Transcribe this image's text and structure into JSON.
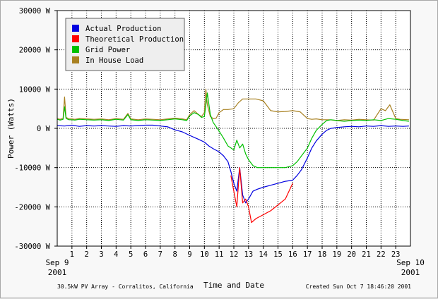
{
  "chart_data": {
    "type": "line",
    "ylabel": "Power (Watts)",
    "xlabel": "Time and Date",
    "footer_left": "30.5kW PV Array - Corralitos, California",
    "footer_right": "Created Sun Oct  7 18:46:20 2001",
    "date_start": "Sep 9",
    "year_start": "2001",
    "date_end": "Sep 10",
    "year_end": "2001",
    "ylim": [
      -30000,
      30000
    ],
    "xlim": [
      0,
      24
    ],
    "y_ticks": [
      30000,
      20000,
      10000,
      0,
      -10000,
      -20000,
      -30000
    ],
    "y_tick_labels": [
      "30000 W",
      "20000 W",
      "10000 W",
      "0 W",
      "-10000 W",
      "-20000 W",
      "-30000 W"
    ],
    "x_ticks": [
      1,
      2,
      3,
      4,
      5,
      6,
      7,
      8,
      9,
      10,
      11,
      12,
      13,
      14,
      15,
      16,
      17,
      18,
      19,
      20,
      21,
      22,
      23
    ],
    "x_tick_labels": [
      "1",
      "2",
      "3",
      "4",
      "5",
      "6",
      "7",
      "8",
      "9",
      "10",
      "11",
      "12",
      "13",
      "14",
      "15",
      "16",
      "17",
      "18",
      "19",
      "20",
      "21",
      "22",
      "23"
    ],
    "grid": true,
    "legend_position": "top-left",
    "series": [
      {
        "name": "Actual Production",
        "color": "#0000e0",
        "x": [
          0,
          0.5,
          1,
          1.5,
          2,
          2.5,
          3,
          3.5,
          4,
          4.5,
          5,
          5.5,
          6,
          6.5,
          7,
          7.5,
          8,
          8.5,
          9,
          9.3,
          9.6,
          10,
          10.3,
          10.6,
          11,
          11.3,
          11.6,
          11.8,
          12,
          12.2,
          12.4,
          12.6,
          12.8,
          13,
          13.3,
          13.6,
          14,
          14.5,
          15,
          15.5,
          16,
          16.3,
          16.6,
          17,
          17.3,
          17.6,
          18,
          18.3,
          18.6,
          19,
          19.5,
          20,
          20.5,
          21,
          21.5,
          22,
          22.5,
          23,
          23.5,
          23.9
        ],
        "y": [
          700,
          600,
          800,
          500,
          700,
          600,
          700,
          600,
          500,
          700,
          600,
          700,
          800,
          800,
          600,
          400,
          -400,
          -900,
          -1800,
          -2300,
          -2800,
          -3500,
          -4500,
          -5200,
          -6000,
          -7000,
          -8500,
          -11000,
          -14000,
          -16000,
          -10000,
          -17000,
          -19000,
          -18000,
          -16000,
          -15500,
          -15000,
          -14500,
          -14000,
          -13500,
          -13200,
          -12000,
          -10500,
          -7500,
          -5000,
          -3200,
          -1500,
          -500,
          0,
          200,
          400,
          500,
          400,
          600,
          500,
          700,
          500,
          600,
          500,
          600
        ]
      },
      {
        "name": "Theoretical Production",
        "color": "#ff0000",
        "x": [
          11.8,
          12,
          12.2,
          12.4,
          12.6,
          12.8,
          13,
          13.2,
          13.5,
          14,
          14.5,
          15,
          15.5,
          16
        ],
        "y": [
          -12000,
          -16000,
          -20000,
          -10000,
          -19000,
          -18000,
          -20000,
          -24000,
          -23000,
          -22000,
          -21000,
          -19500,
          -18000,
          -14000
        ]
      },
      {
        "name": "Grid Power",
        "color": "#00c000",
        "x": [
          0,
          0.2,
          0.4,
          0.5,
          0.6,
          0.8,
          1,
          1.2,
          1.5,
          2,
          2.5,
          3,
          3.5,
          4,
          4.5,
          4.8,
          5,
          5.5,
          6,
          6.5,
          7,
          7.5,
          8,
          8.5,
          8.8,
          9,
          9.3,
          9.6,
          9.8,
          10,
          10.2,
          10.4,
          10.6,
          11,
          11.3,
          11.6,
          11.8,
          12,
          12.2,
          12.4,
          12.6,
          12.8,
          13,
          13.3,
          13.6,
          14,
          14.5,
          15,
          15.5,
          16,
          16.3,
          16.6,
          17,
          17.3,
          17.6,
          18,
          18.3,
          18.6,
          19,
          19.5,
          20,
          20.5,
          21,
          21.5,
          22,
          22.5,
          23,
          23.5,
          23.9
        ],
        "y": [
          2300,
          2100,
          2300,
          5500,
          2500,
          2200,
          2200,
          2100,
          2300,
          2200,
          2100,
          2200,
          2000,
          2300,
          2100,
          3500,
          2200,
          2000,
          2200,
          2100,
          2000,
          2200,
          2400,
          2200,
          2000,
          3200,
          4000,
          3500,
          2800,
          3000,
          9000,
          3500,
          1500,
          -700,
          -2500,
          -4500,
          -5000,
          -5500,
          -3000,
          -5000,
          -4000,
          -6500,
          -8000,
          -9500,
          -10000,
          -10000,
          -10000,
          -10000,
          -10000,
          -9500,
          -8500,
          -7000,
          -5000,
          -2500,
          -500,
          1000,
          2000,
          2200,
          2000,
          1800,
          2000,
          2100,
          2000,
          2200,
          2000,
          2500,
          2300,
          2000,
          1800
        ]
      },
      {
        "name": "In House Load",
        "color": "#a88020",
        "x": [
          0,
          0.2,
          0.4,
          0.5,
          0.6,
          0.8,
          1,
          1.2,
          1.5,
          2,
          2.5,
          3,
          3.5,
          4,
          4.5,
          4.8,
          5,
          5.5,
          6,
          6.5,
          7,
          7.5,
          8,
          8.5,
          8.8,
          9,
          9.3,
          9.6,
          9.8,
          10,
          10.1,
          10.2,
          10.4,
          10.6,
          10.8,
          11,
          11.3,
          11.6,
          12,
          12.3,
          12.6,
          13,
          13.5,
          14,
          14.5,
          15,
          15.5,
          16,
          16.5,
          17,
          17.3,
          17.6,
          18,
          18.5,
          19,
          19.5,
          20,
          20.5,
          21,
          21.5,
          22,
          22.3,
          22.6,
          23,
          23.3,
          23.9
        ],
        "y": [
          2500,
          2300,
          2600,
          8000,
          2800,
          2400,
          2400,
          2300,
          2500,
          2400,
          2300,
          2400,
          2200,
          2500,
          2300,
          3800,
          2400,
          2200,
          2400,
          2300,
          2200,
          2400,
          2600,
          2400,
          2200,
          3500,
          4500,
          3500,
          3000,
          4000,
          10000,
          6000,
          3000,
          2500,
          2600,
          4000,
          4800,
          4800,
          5000,
          6500,
          7500,
          7500,
          7500,
          7000,
          4500,
          4200,
          4300,
          4500,
          4200,
          2500,
          2300,
          2400,
          2200,
          2200,
          2000,
          2200,
          2100,
          2300,
          2200,
          2100,
          5000,
          4500,
          6000,
          2500,
          2300,
          2200
        ]
      }
    ]
  }
}
